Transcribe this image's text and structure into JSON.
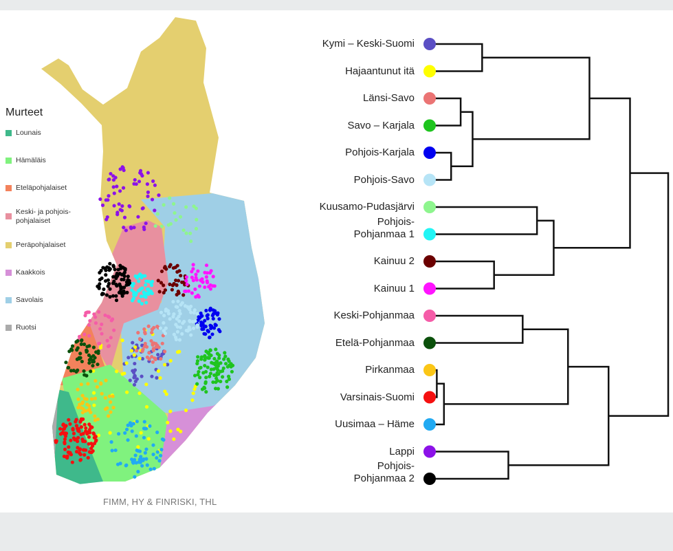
{
  "legend": {
    "title": "Murteet",
    "items": [
      {
        "label": "Lounais",
        "color": "#3fb98b"
      },
      {
        "label": "Hämäläis",
        "color": "#80f27e"
      },
      {
        "label": "Eteläpohjalaiset",
        "color": "#f3825c"
      },
      {
        "label": "Keski- ja pohjois-\npohjalaiset",
        "color": "#e8909f"
      },
      {
        "label": "Peräpohjalaiset",
        "color": "#e4cf6f"
      },
      {
        "label": "Kaakkois",
        "color": "#d690d8"
      },
      {
        "label": "Savolais",
        "color": "#9fcfe6"
      },
      {
        "label": "Ruotsi",
        "color": "#ababab"
      }
    ]
  },
  "credit": "FIMM, HY & FINRISKI, THL",
  "dendrogram": {
    "leaves": [
      {
        "label": "Kymi – Keski-Suomi",
        "color": "#5b4fc4"
      },
      {
        "label": "Hajaantunut itä",
        "color": "#ffff00"
      },
      {
        "label": "Länsi-Savo",
        "color": "#eb7474"
      },
      {
        "label": "Savo – Karjala",
        "color": "#1ec41e"
      },
      {
        "label": "Pohjois-Karjala",
        "color": "#0000f0"
      },
      {
        "label": "Pohjois-Savo",
        "color": "#b6e4f6"
      },
      {
        "label": "Kuusamo-Pudasjärvi",
        "color": "#8ef58e"
      },
      {
        "label": "Pohjois-\nPohjanmaa 1",
        "color": "#22f5f5"
      },
      {
        "label": "Kainuu 2",
        "color": "#6b0000"
      },
      {
        "label": "Kainuu 1",
        "color": "#ff14ff"
      },
      {
        "label": "Keski-Pohjanmaa",
        "color": "#f55ca8"
      },
      {
        "label": "Etelä-Pohjanmaa",
        "color": "#0b500b"
      },
      {
        "label": "Pirkanmaa",
        "color": "#fbc616"
      },
      {
        "label": "Varsinais-Suomi",
        "color": "#f51010"
      },
      {
        "label": "Uusimaa – Häme",
        "color": "#22aaf2"
      },
      {
        "label": "Lappi",
        "color": "#8c12e8"
      },
      {
        "label": "Pohjois-\nPohjanmaa 2",
        "color": "#000000"
      }
    ],
    "merges": [
      [
        0,
        1,
        0.22
      ],
      [
        2,
        3,
        0.13
      ],
      [
        4,
        5,
        0.09
      ],
      [
        18,
        19,
        0.18
      ],
      [
        17,
        20,
        0.67
      ],
      [
        6,
        7,
        0.45
      ],
      [
        8,
        9,
        0.27
      ],
      [
        22,
        23,
        0.52
      ],
      [
        21,
        24,
        0.84
      ],
      [
        10,
        11,
        0.39
      ],
      [
        12,
        13,
        0.03
      ],
      [
        27,
        14,
        0.06
      ],
      [
        26,
        28,
        0.58
      ],
      [
        15,
        16,
        0.33
      ],
      [
        29,
        30,
        0.75
      ],
      [
        25,
        31,
        1.0
      ]
    ]
  }
}
